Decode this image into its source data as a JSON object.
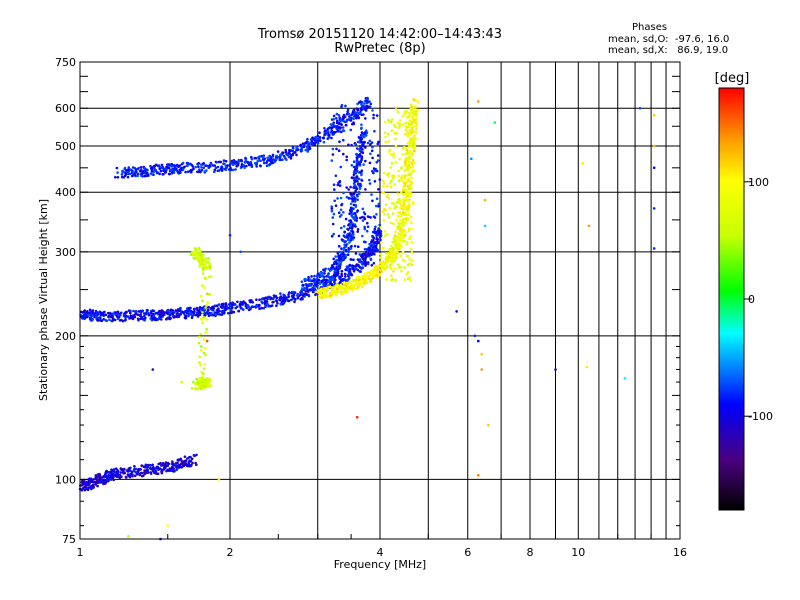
{
  "chart_data": {
    "type": "scatter",
    "title": "Tromsø 20151120 14:42:00–14:43:43",
    "subtitle": "RwPretec (8p)",
    "xlabel": "Frequency [MHz]",
    "ylabel": "Stationary phase Virtual Height [km]",
    "x_scale": "log",
    "y_scale": "log",
    "xlim": [
      1,
      16
    ],
    "ylim": [
      75,
      750
    ],
    "x_ticks": [
      1,
      2,
      4,
      6,
      8,
      10,
      16
    ],
    "x_tick_labels": [
      "1",
      "2",
      "4",
      "6",
      "8",
      "10",
      "16"
    ],
    "y_ticks": [
      75,
      100,
      200,
      300,
      400,
      500,
      600,
      750
    ],
    "y_tick_labels": [
      "75",
      "100",
      "200",
      "300",
      "400",
      "500",
      "600",
      "750"
    ],
    "grid": true,
    "phase_stats": {
      "heading": "Phases",
      "line_o": "mean, sd,O:  -97.6, 16.0",
      "line_x": "mean, sd,X:   86.9, 19.0"
    },
    "colorbar": {
      "label": "[deg]",
      "range": [
        -180,
        180
      ],
      "ticks": [
        100,
        0,
        -100
      ],
      "tick_labels": [
        "100",
        "0",
        "-100"
      ]
    },
    "traces": [
      {
        "kind": "o",
        "phase": -100,
        "points": [
          [
            1.0,
            222
          ],
          [
            1.05,
            221
          ],
          [
            1.1,
            220
          ],
          [
            1.2,
            220
          ],
          [
            1.3,
            221
          ],
          [
            1.4,
            221
          ],
          [
            1.5,
            222
          ],
          [
            1.6,
            223
          ],
          [
            1.7,
            224
          ],
          [
            1.8,
            225
          ],
          [
            1.9,
            227
          ],
          [
            2.0,
            229
          ],
          [
            2.2,
            232
          ],
          [
            2.4,
            236
          ],
          [
            2.6,
            240
          ],
          [
            2.8,
            245
          ],
          [
            3.0,
            251
          ],
          [
            3.2,
            258
          ],
          [
            3.4,
            267
          ],
          [
            3.6,
            279
          ],
          [
            3.8,
            296
          ],
          [
            3.9,
            310
          ],
          [
            3.95,
            330
          ]
        ]
      },
      {
        "kind": "o",
        "phase": -110,
        "points": [
          [
            1.0,
            97
          ],
          [
            1.05,
            98
          ],
          [
            1.1,
            100
          ],
          [
            1.15,
            102
          ],
          [
            1.2,
            103
          ],
          [
            1.3,
            104
          ],
          [
            1.4,
            105
          ],
          [
            1.5,
            106
          ],
          [
            1.6,
            108
          ],
          [
            1.7,
            110
          ]
        ]
      },
      {
        "kind": "o",
        "phase": -95,
        "points": [
          [
            1.2,
            440
          ],
          [
            1.3,
            442
          ],
          [
            1.4,
            445
          ],
          [
            1.5,
            447
          ],
          [
            1.6,
            449
          ],
          [
            1.8,
            452
          ],
          [
            2.0,
            456
          ],
          [
            2.2,
            461
          ],
          [
            2.4,
            468
          ],
          [
            2.6,
            480
          ],
          [
            2.8,
            496
          ],
          [
            3.0,
            516
          ],
          [
            3.2,
            538
          ],
          [
            3.4,
            562
          ],
          [
            3.6,
            590
          ],
          [
            3.8,
            620
          ]
        ]
      },
      {
        "kind": "o",
        "phase": -90,
        "points": [
          [
            2.8,
            255
          ],
          [
            3.0,
            262
          ],
          [
            3.2,
            272
          ],
          [
            3.3,
            285
          ],
          [
            3.4,
            300
          ],
          [
            3.5,
            330
          ],
          [
            3.55,
            370
          ],
          [
            3.6,
            420
          ],
          [
            3.65,
            480
          ],
          [
            3.7,
            540
          ]
        ]
      },
      {
        "kind": "x",
        "phase": 95,
        "points": [
          [
            3.0,
            245
          ],
          [
            3.2,
            248
          ],
          [
            3.4,
            252
          ],
          [
            3.6,
            257
          ],
          [
            3.8,
            265
          ],
          [
            4.0,
            275
          ],
          [
            4.2,
            290
          ],
          [
            4.3,
            305
          ],
          [
            4.4,
            330
          ],
          [
            4.5,
            370
          ],
          [
            4.55,
            420
          ],
          [
            4.6,
            480
          ],
          [
            4.65,
            550
          ],
          [
            4.7,
            620
          ]
        ]
      },
      {
        "kind": "x",
        "phase": 60,
        "points": [
          [
            1.7,
            300
          ],
          [
            1.75,
            290
          ],
          [
            1.8,
            280
          ],
          [
            1.75,
            160
          ],
          [
            1.8,
            160
          ],
          [
            1.7,
            158
          ]
        ]
      }
    ],
    "scatter_points": [
      [
        1.8,
        195,
        160
      ],
      [
        3.6,
        135,
        170
      ],
      [
        5.7,
        225,
        -110
      ],
      [
        6.3,
        195,
        -100
      ],
      [
        6.4,
        170,
        140
      ],
      [
        6.6,
        130,
        120
      ],
      [
        6.3,
        102,
        150
      ],
      [
        6.4,
        183,
        120
      ],
      [
        9.0,
        170,
        -120
      ],
      [
        10.4,
        172,
        110
      ],
      [
        12.4,
        163,
        -30
      ],
      [
        13.3,
        600,
        -80
      ],
      [
        14.2,
        450,
        -100
      ],
      [
        14.2,
        370,
        -90
      ],
      [
        14.2,
        305,
        -90
      ],
      [
        14.2,
        500,
        130
      ],
      [
        14.2,
        580,
        120
      ],
      [
        10.5,
        340,
        140
      ],
      [
        10.2,
        460,
        110
      ],
      [
        6.5,
        340,
        -40
      ],
      [
        6.5,
        385,
        130
      ],
      [
        6.1,
        470,
        -60
      ],
      [
        6.3,
        620,
        140
      ],
      [
        6.8,
        560,
        -10
      ],
      [
        1.9,
        100,
        110
      ],
      [
        1.5,
        80,
        100
      ],
      [
        1.6,
        160,
        60
      ],
      [
        1.25,
        76,
        40
      ],
      [
        1.45,
        75,
        -110
      ],
      [
        1.4,
        170,
        -120
      ],
      [
        2.1,
        300,
        -80
      ],
      [
        2.0,
        325,
        -90
      ],
      [
        1.8,
        245,
        120
      ],
      [
        6.2,
        200,
        -90
      ]
    ]
  }
}
